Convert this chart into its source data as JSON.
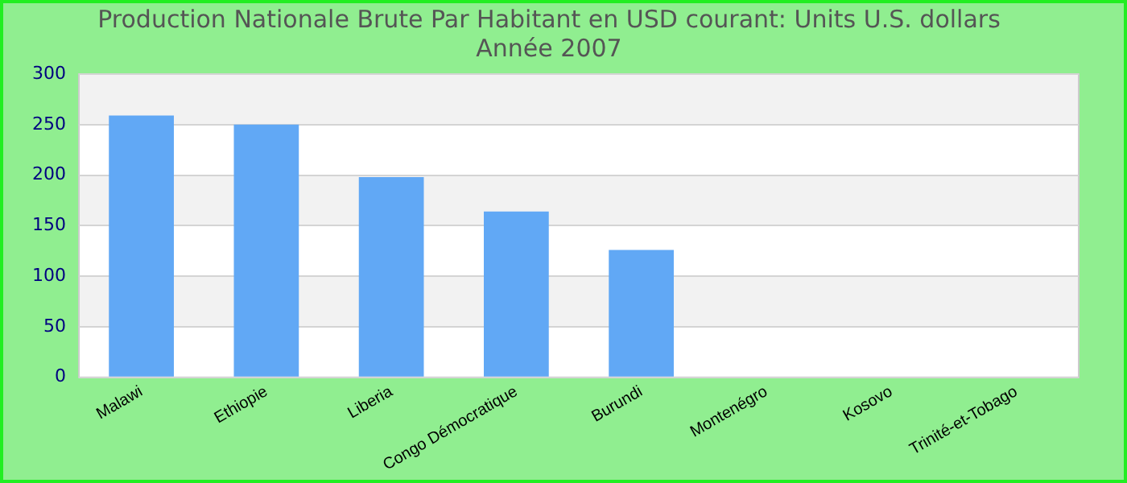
{
  "chart_data": {
    "type": "bar",
    "title": "Production Nationale Brute Par Habitant en USD courant: Units U.S. dollars",
    "subtitle": "Année 2007",
    "categories": [
      "Malawi",
      "Ethiopie",
      "Liberia",
      "Congo Démocratique",
      "Burundi",
      "Montenégro",
      "Kosovo",
      "Trinité-et-Tobago"
    ],
    "values": [
      259,
      250,
      198,
      164,
      126,
      null,
      null,
      null
    ],
    "color": "#61a8f5",
    "ylim": [
      0,
      300
    ],
    "yticks": [
      0,
      50,
      100,
      150,
      200,
      250,
      300
    ],
    "grid": "y",
    "legend": false
  }
}
